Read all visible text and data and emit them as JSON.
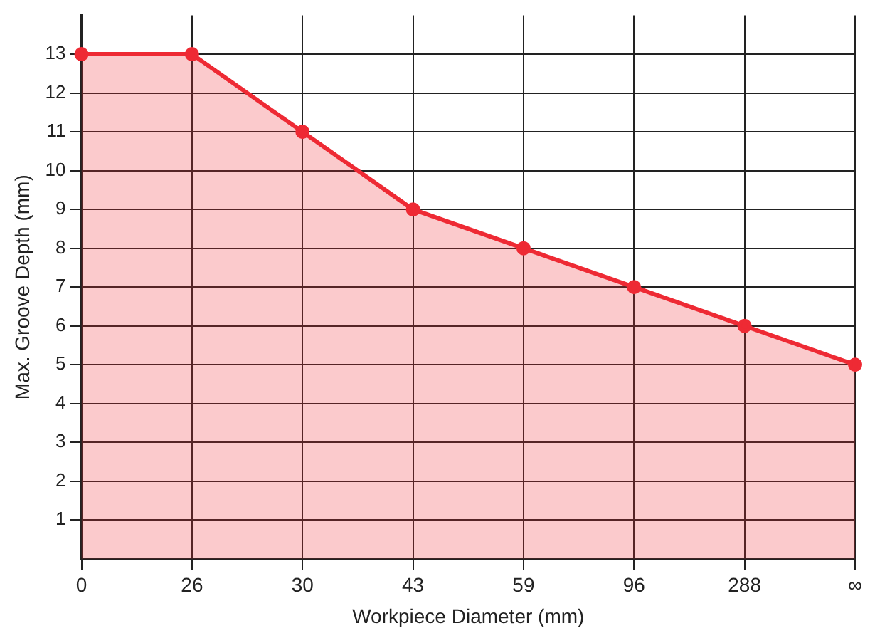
{
  "chart_data": {
    "type": "area",
    "xlabel": "Workpiece Diameter (mm)",
    "ylabel": "Max. Groove Depth (mm)",
    "categories": [
      "0",
      "26",
      "30",
      "43",
      "59",
      "96",
      "288",
      "∞"
    ],
    "series": [
      {
        "color": "#ee2a34",
        "values": [
          13,
          13,
          11,
          9,
          8,
          7,
          6,
          5
        ]
      }
    ],
    "ylim": [
      0,
      14
    ],
    "yticks": [
      1,
      2,
      3,
      4,
      5,
      6,
      7,
      8,
      9,
      10,
      11,
      12,
      13
    ],
    "grid": true,
    "legend": false,
    "marker": "circle",
    "line_style": "solid"
  }
}
